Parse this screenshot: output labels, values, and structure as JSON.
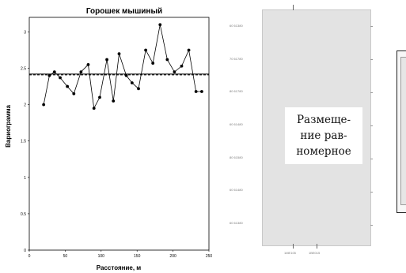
{
  "chart_data": {
    "type": "line",
    "title": "Горошек мышиный",
    "xlabel": "Расстояние, м",
    "ylabel": "Вариограмма",
    "xlim": [
      0,
      250
    ],
    "ylim": [
      0,
      3.2
    ],
    "x_ticks": [
      "0",
      "50",
      "100",
      "150",
      "200",
      "250"
    ],
    "y_ticks": [
      "0",
      "0.5",
      "1",
      "1.5",
      "2",
      "2.5",
      "3"
    ],
    "grid": false,
    "series": [
      {
        "x": [
          20,
          28,
          35,
          43,
          53,
          62,
          72,
          82,
          90,
          98,
          108,
          117,
          125,
          135,
          143,
          152,
          162,
          172,
          182,
          192,
          202,
          212,
          222,
          232,
          240
        ],
        "y": [
          2.0,
          2.4,
          2.45,
          2.37,
          2.25,
          2.15,
          2.45,
          2.55,
          1.95,
          2.1,
          2.62,
          2.05,
          2.7,
          2.4,
          2.3,
          2.22,
          2.75,
          2.57,
          3.1,
          2.62,
          2.45,
          2.53,
          2.75,
          2.18,
          2.18
        ]
      }
    ],
    "reference_lines": [
      {
        "style": "solid",
        "y": 2.42
      },
      {
        "style": "dashed",
        "y": 2.41
      }
    ]
  },
  "map_panel": {
    "caption": "Размеще-ние рав-номерное",
    "caption_lines": [
      "Размеще-",
      "ние рав-",
      "номерное"
    ],
    "y_labels": [
      "60 61380",
      "70 61780",
      "80 61780",
      "60 61480",
      "80 61580",
      "60 61480",
      "60 61380"
    ],
    "x_labels": [
      "1ME105",
      "1BE015"
    ]
  }
}
